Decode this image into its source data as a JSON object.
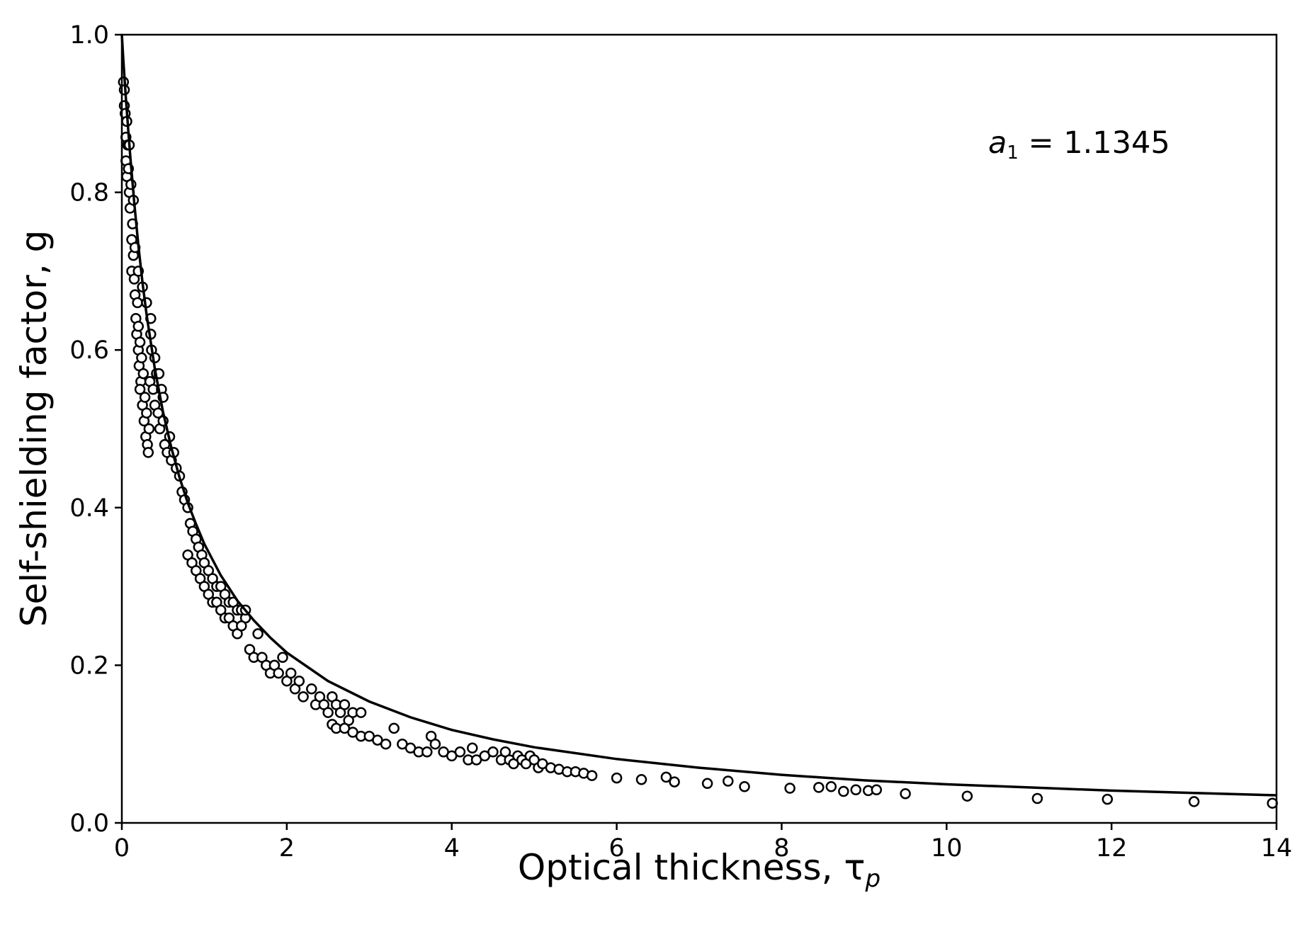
{
  "chart_data": {
    "type": "scatter",
    "title": "",
    "xlabel": "Optical thickness, τ",
    "xlabel_subscript": "p",
    "ylabel": "Self-shielding factor, g",
    "xlim": [
      0,
      14
    ],
    "ylim": [
      0,
      1.0
    ],
    "x_ticks": [
      0,
      2,
      4,
      6,
      8,
      10,
      12,
      14
    ],
    "x_tick_labels": [
      "0",
      "2",
      "4",
      "6",
      "8",
      "10",
      "12",
      "14"
    ],
    "y_ticks": [
      0.0,
      0.2,
      0.4,
      0.6,
      0.8,
      1.0
    ],
    "y_tick_labels": [
      "0.0",
      "0.2",
      "0.4",
      "0.6",
      "0.8",
      "1.0"
    ],
    "grid": false,
    "legend": "none",
    "annotation": {
      "var": "a",
      "sub": "1",
      "rest": " = 1.1345",
      "position": "top-right"
    },
    "series": [
      {
        "kind": "line",
        "description_fit": true,
        "color": "#000000",
        "x": [
          0,
          0.02,
          0.05,
          0.08,
          0.1,
          0.15,
          0.2,
          0.25,
          0.3,
          0.4,
          0.5,
          0.6,
          0.7,
          0.8,
          0.9,
          1.0,
          1.2,
          1.4,
          1.6,
          1.8,
          2.0,
          2.5,
          3.0,
          3.5,
          4.0,
          4.5,
          5.0,
          6.0,
          7.0,
          8.0,
          9.0,
          10.0,
          11.0,
          12.0,
          13.0,
          14.0
        ],
        "y": [
          1.0,
          0.965,
          0.918,
          0.876,
          0.849,
          0.787,
          0.733,
          0.686,
          0.645,
          0.576,
          0.521,
          0.476,
          0.438,
          0.406,
          0.379,
          0.354,
          0.314,
          0.282,
          0.257,
          0.235,
          0.216,
          0.18,
          0.154,
          0.134,
          0.118,
          0.106,
          0.096,
          0.081,
          0.07,
          0.061,
          0.054,
          0.049,
          0.045,
          0.041,
          0.038,
          0.035
        ]
      },
      {
        "kind": "markers",
        "marker": "open-circle",
        "color": "#000000",
        "points": [
          [
            0.02,
            0.94
          ],
          [
            0.03,
            0.91
          ],
          [
            0.04,
            0.9
          ],
          [
            0.05,
            0.87
          ],
          [
            0.05,
            0.84
          ],
          [
            0.06,
            0.82
          ],
          [
            0.07,
            0.86
          ],
          [
            0.08,
            0.83
          ],
          [
            0.09,
            0.8
          ],
          [
            0.1,
            0.78
          ],
          [
            0.11,
            0.81
          ],
          [
            0.12,
            0.74
          ],
          [
            0.13,
            0.76
          ],
          [
            0.12,
            0.7
          ],
          [
            0.14,
            0.72
          ],
          [
            0.15,
            0.69
          ],
          [
            0.16,
            0.67
          ],
          [
            0.17,
            0.64
          ],
          [
            0.18,
            0.62
          ],
          [
            0.19,
            0.66
          ],
          [
            0.2,
            0.63
          ],
          [
            0.2,
            0.6
          ],
          [
            0.21,
            0.58
          ],
          [
            0.22,
            0.61
          ],
          [
            0.23,
            0.56
          ],
          [
            0.24,
            0.59
          ],
          [
            0.22,
            0.55
          ],
          [
            0.25,
            0.53
          ],
          [
            0.26,
            0.57
          ],
          [
            0.27,
            0.51
          ],
          [
            0.28,
            0.54
          ],
          [
            0.29,
            0.49
          ],
          [
            0.3,
            0.52
          ],
          [
            0.31,
            0.48
          ],
          [
            0.32,
            0.47
          ],
          [
            0.33,
            0.5
          ],
          [
            0.34,
            0.56
          ],
          [
            0.35,
            0.62
          ],
          [
            0.36,
            0.6
          ],
          [
            0.38,
            0.55
          ],
          [
            0.4,
            0.53
          ],
          [
            0.42,
            0.57
          ],
          [
            0.44,
            0.52
          ],
          [
            0.46,
            0.5
          ],
          [
            0.48,
            0.55
          ],
          [
            0.5,
            0.51
          ],
          [
            0.52,
            0.48
          ],
          [
            0.55,
            0.47
          ],
          [
            0.58,
            0.49
          ],
          [
            0.6,
            0.46
          ],
          [
            0.63,
            0.47
          ],
          [
            0.66,
            0.45
          ],
          [
            0.2,
            0.7
          ],
          [
            0.25,
            0.68
          ],
          [
            0.3,
            0.66
          ],
          [
            0.35,
            0.64
          ],
          [
            0.16,
            0.73
          ],
          [
            0.14,
            0.79
          ],
          [
            0.09,
            0.86
          ],
          [
            0.06,
            0.89
          ],
          [
            0.03,
            0.93
          ],
          [
            0.4,
            0.59
          ],
          [
            0.45,
            0.57
          ],
          [
            0.5,
            0.54
          ],
          [
            0.7,
            0.44
          ],
          [
            0.73,
            0.42
          ],
          [
            0.76,
            0.41
          ],
          [
            0.8,
            0.4
          ],
          [
            0.83,
            0.38
          ],
          [
            0.86,
            0.37
          ],
          [
            0.9,
            0.36
          ],
          [
            0.93,
            0.35
          ],
          [
            0.97,
            0.34
          ],
          [
            1.0,
            0.33
          ],
          [
            1.05,
            0.32
          ],
          [
            1.1,
            0.31
          ],
          [
            1.15,
            0.3
          ],
          [
            0.8,
            0.34
          ],
          [
            0.85,
            0.33
          ],
          [
            0.9,
            0.32
          ],
          [
            0.95,
            0.31
          ],
          [
            1.0,
            0.3
          ],
          [
            1.05,
            0.29
          ],
          [
            1.1,
            0.28
          ],
          [
            1.15,
            0.28
          ],
          [
            1.2,
            0.27
          ],
          [
            1.25,
            0.26
          ],
          [
            1.3,
            0.26
          ],
          [
            1.35,
            0.25
          ],
          [
            1.4,
            0.24
          ],
          [
            1.2,
            0.3
          ],
          [
            1.25,
            0.29
          ],
          [
            1.3,
            0.28
          ],
          [
            1.35,
            0.28
          ],
          [
            1.4,
            0.27
          ],
          [
            1.45,
            0.27
          ],
          [
            1.5,
            0.26
          ],
          [
            1.45,
            0.25
          ],
          [
            1.5,
            0.27
          ],
          [
            1.55,
            0.22
          ],
          [
            1.6,
            0.21
          ],
          [
            1.65,
            0.24
          ],
          [
            1.7,
            0.21
          ],
          [
            1.75,
            0.2
          ],
          [
            1.8,
            0.19
          ],
          [
            1.85,
            0.2
          ],
          [
            1.9,
            0.19
          ],
          [
            1.95,
            0.21
          ],
          [
            2.0,
            0.18
          ],
          [
            2.05,
            0.19
          ],
          [
            2.1,
            0.17
          ],
          [
            2.15,
            0.18
          ],
          [
            2.2,
            0.16
          ],
          [
            2.3,
            0.17
          ],
          [
            2.35,
            0.15
          ],
          [
            2.4,
            0.16
          ],
          [
            2.45,
            0.15
          ],
          [
            2.5,
            0.14
          ],
          [
            2.55,
            0.16
          ],
          [
            2.6,
            0.15
          ],
          [
            2.65,
            0.14
          ],
          [
            2.7,
            0.15
          ],
          [
            2.75,
            0.13
          ],
          [
            2.8,
            0.14
          ],
          [
            2.9,
            0.14
          ],
          [
            2.55,
            0.125
          ],
          [
            2.6,
            0.12
          ],
          [
            2.7,
            0.12
          ],
          [
            2.8,
            0.115
          ],
          [
            2.9,
            0.11
          ],
          [
            3.0,
            0.11
          ],
          [
            3.1,
            0.105
          ],
          [
            3.2,
            0.1
          ],
          [
            3.3,
            0.12
          ],
          [
            3.4,
            0.1
          ],
          [
            3.5,
            0.095
          ],
          [
            3.6,
            0.09
          ],
          [
            3.7,
            0.09
          ],
          [
            3.75,
            0.11
          ],
          [
            3.8,
            0.1
          ],
          [
            3.9,
            0.09
          ],
          [
            4.0,
            0.085
          ],
          [
            4.1,
            0.09
          ],
          [
            4.2,
            0.08
          ],
          [
            4.25,
            0.095
          ],
          [
            4.3,
            0.08
          ],
          [
            4.4,
            0.085
          ],
          [
            4.5,
            0.09
          ],
          [
            4.6,
            0.08
          ],
          [
            4.65,
            0.09
          ],
          [
            4.7,
            0.08
          ],
          [
            4.75,
            0.075
          ],
          [
            4.8,
            0.085
          ],
          [
            4.85,
            0.08
          ],
          [
            4.9,
            0.075
          ],
          [
            4.95,
            0.085
          ],
          [
            5.0,
            0.08
          ],
          [
            5.05,
            0.07
          ],
          [
            5.1,
            0.075
          ],
          [
            5.2,
            0.07
          ],
          [
            5.3,
            0.068
          ],
          [
            5.4,
            0.065
          ],
          [
            5.5,
            0.065
          ],
          [
            5.6,
            0.063
          ],
          [
            5.7,
            0.06
          ],
          [
            6.0,
            0.057
          ],
          [
            6.3,
            0.055
          ],
          [
            6.6,
            0.058
          ],
          [
            6.7,
            0.052
          ],
          [
            7.1,
            0.05
          ],
          [
            7.35,
            0.053
          ],
          [
            7.55,
            0.046
          ],
          [
            8.1,
            0.044
          ],
          [
            8.45,
            0.045
          ],
          [
            8.6,
            0.046
          ],
          [
            8.75,
            0.04
          ],
          [
            8.9,
            0.042
          ],
          [
            9.05,
            0.041
          ],
          [
            9.15,
            0.042
          ],
          [
            9.5,
            0.037
          ],
          [
            10.25,
            0.034
          ],
          [
            11.1,
            0.031
          ],
          [
            11.95,
            0.03
          ],
          [
            13.0,
            0.027
          ],
          [
            13.95,
            0.025
          ]
        ]
      }
    ]
  }
}
